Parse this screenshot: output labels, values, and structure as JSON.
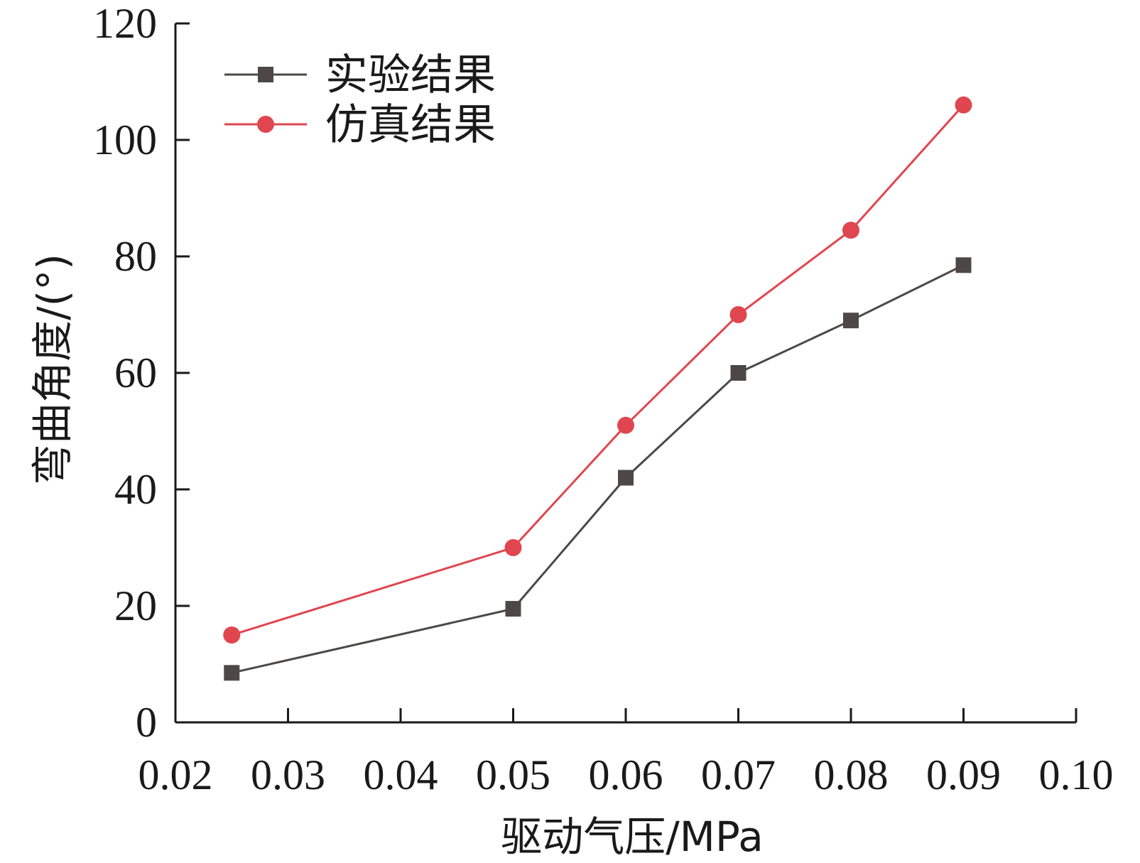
{
  "chart_data": {
    "type": "line",
    "xlabel": "驱动气压/MPa",
    "ylabel": "弯曲角度/(°)",
    "xlim": [
      0.02,
      0.1
    ],
    "ylim": [
      0,
      120
    ],
    "xticks": [
      "0.02",
      "0.03",
      "0.04",
      "0.05",
      "0.06",
      "0.07",
      "0.08",
      "0.09",
      "0.10"
    ],
    "yticks": [
      "0",
      "20",
      "40",
      "60",
      "80",
      "100",
      "120"
    ],
    "grid": false,
    "legend": "top-left",
    "series": [
      {
        "name": "实验结果",
        "marker": "square",
        "color": "#4d4847",
        "x": [
          0.025,
          0.05,
          0.06,
          0.07,
          0.08,
          0.09
        ],
        "y": [
          8.5,
          19.5,
          42,
          60,
          69,
          78.5
        ]
      },
      {
        "name": "仿真结果",
        "marker": "circle",
        "color": "#e0464f",
        "x": [
          0.025,
          0.05,
          0.06,
          0.07,
          0.08,
          0.09
        ],
        "y": [
          15,
          30,
          51,
          70,
          84.5,
          106
        ]
      }
    ]
  }
}
